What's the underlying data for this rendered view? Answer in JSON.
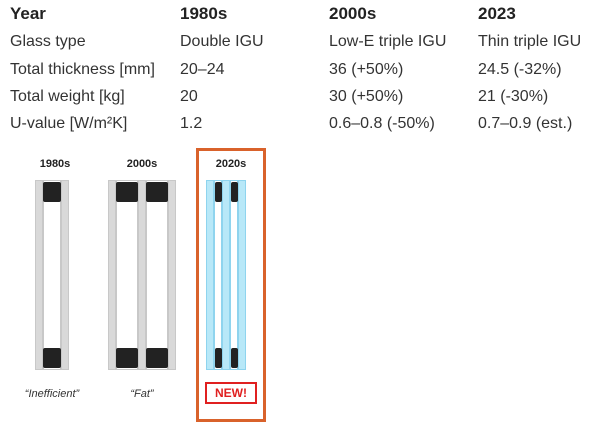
{
  "table": {
    "headers": [
      "Year",
      "1980s",
      "2000s",
      "2023"
    ],
    "rows": [
      {
        "label": "Glass type",
        "values": [
          "Double IGU",
          "Low-E triple IGU",
          "Thin triple IGU"
        ]
      },
      {
        "label": "Total thickness [mm]",
        "values": [
          "20–24",
          "36 (+50%)",
          "24.5 (-32%)"
        ]
      },
      {
        "label": "Total weight [kg]",
        "values": [
          "20",
          "30 (+50%)",
          "21 (-30%)"
        ]
      },
      {
        "label": "U-value [W/m²K]",
        "values": [
          "1.2",
          "0.6–0.8 (-50%)",
          "0.7–0.9 (est.)"
        ]
      }
    ]
  },
  "diagram": {
    "windows": [
      {
        "label": "1980s",
        "caption": "“Inefficient”"
      },
      {
        "label": "2000s",
        "caption": "“Fat”"
      },
      {
        "label": "2020s",
        "badge": "NEW!"
      }
    ],
    "colors": {
      "highlight": "#d9622b",
      "badge": "#e02020",
      "thin_glass": "#b8e8f8",
      "spacer": "#222222"
    }
  }
}
